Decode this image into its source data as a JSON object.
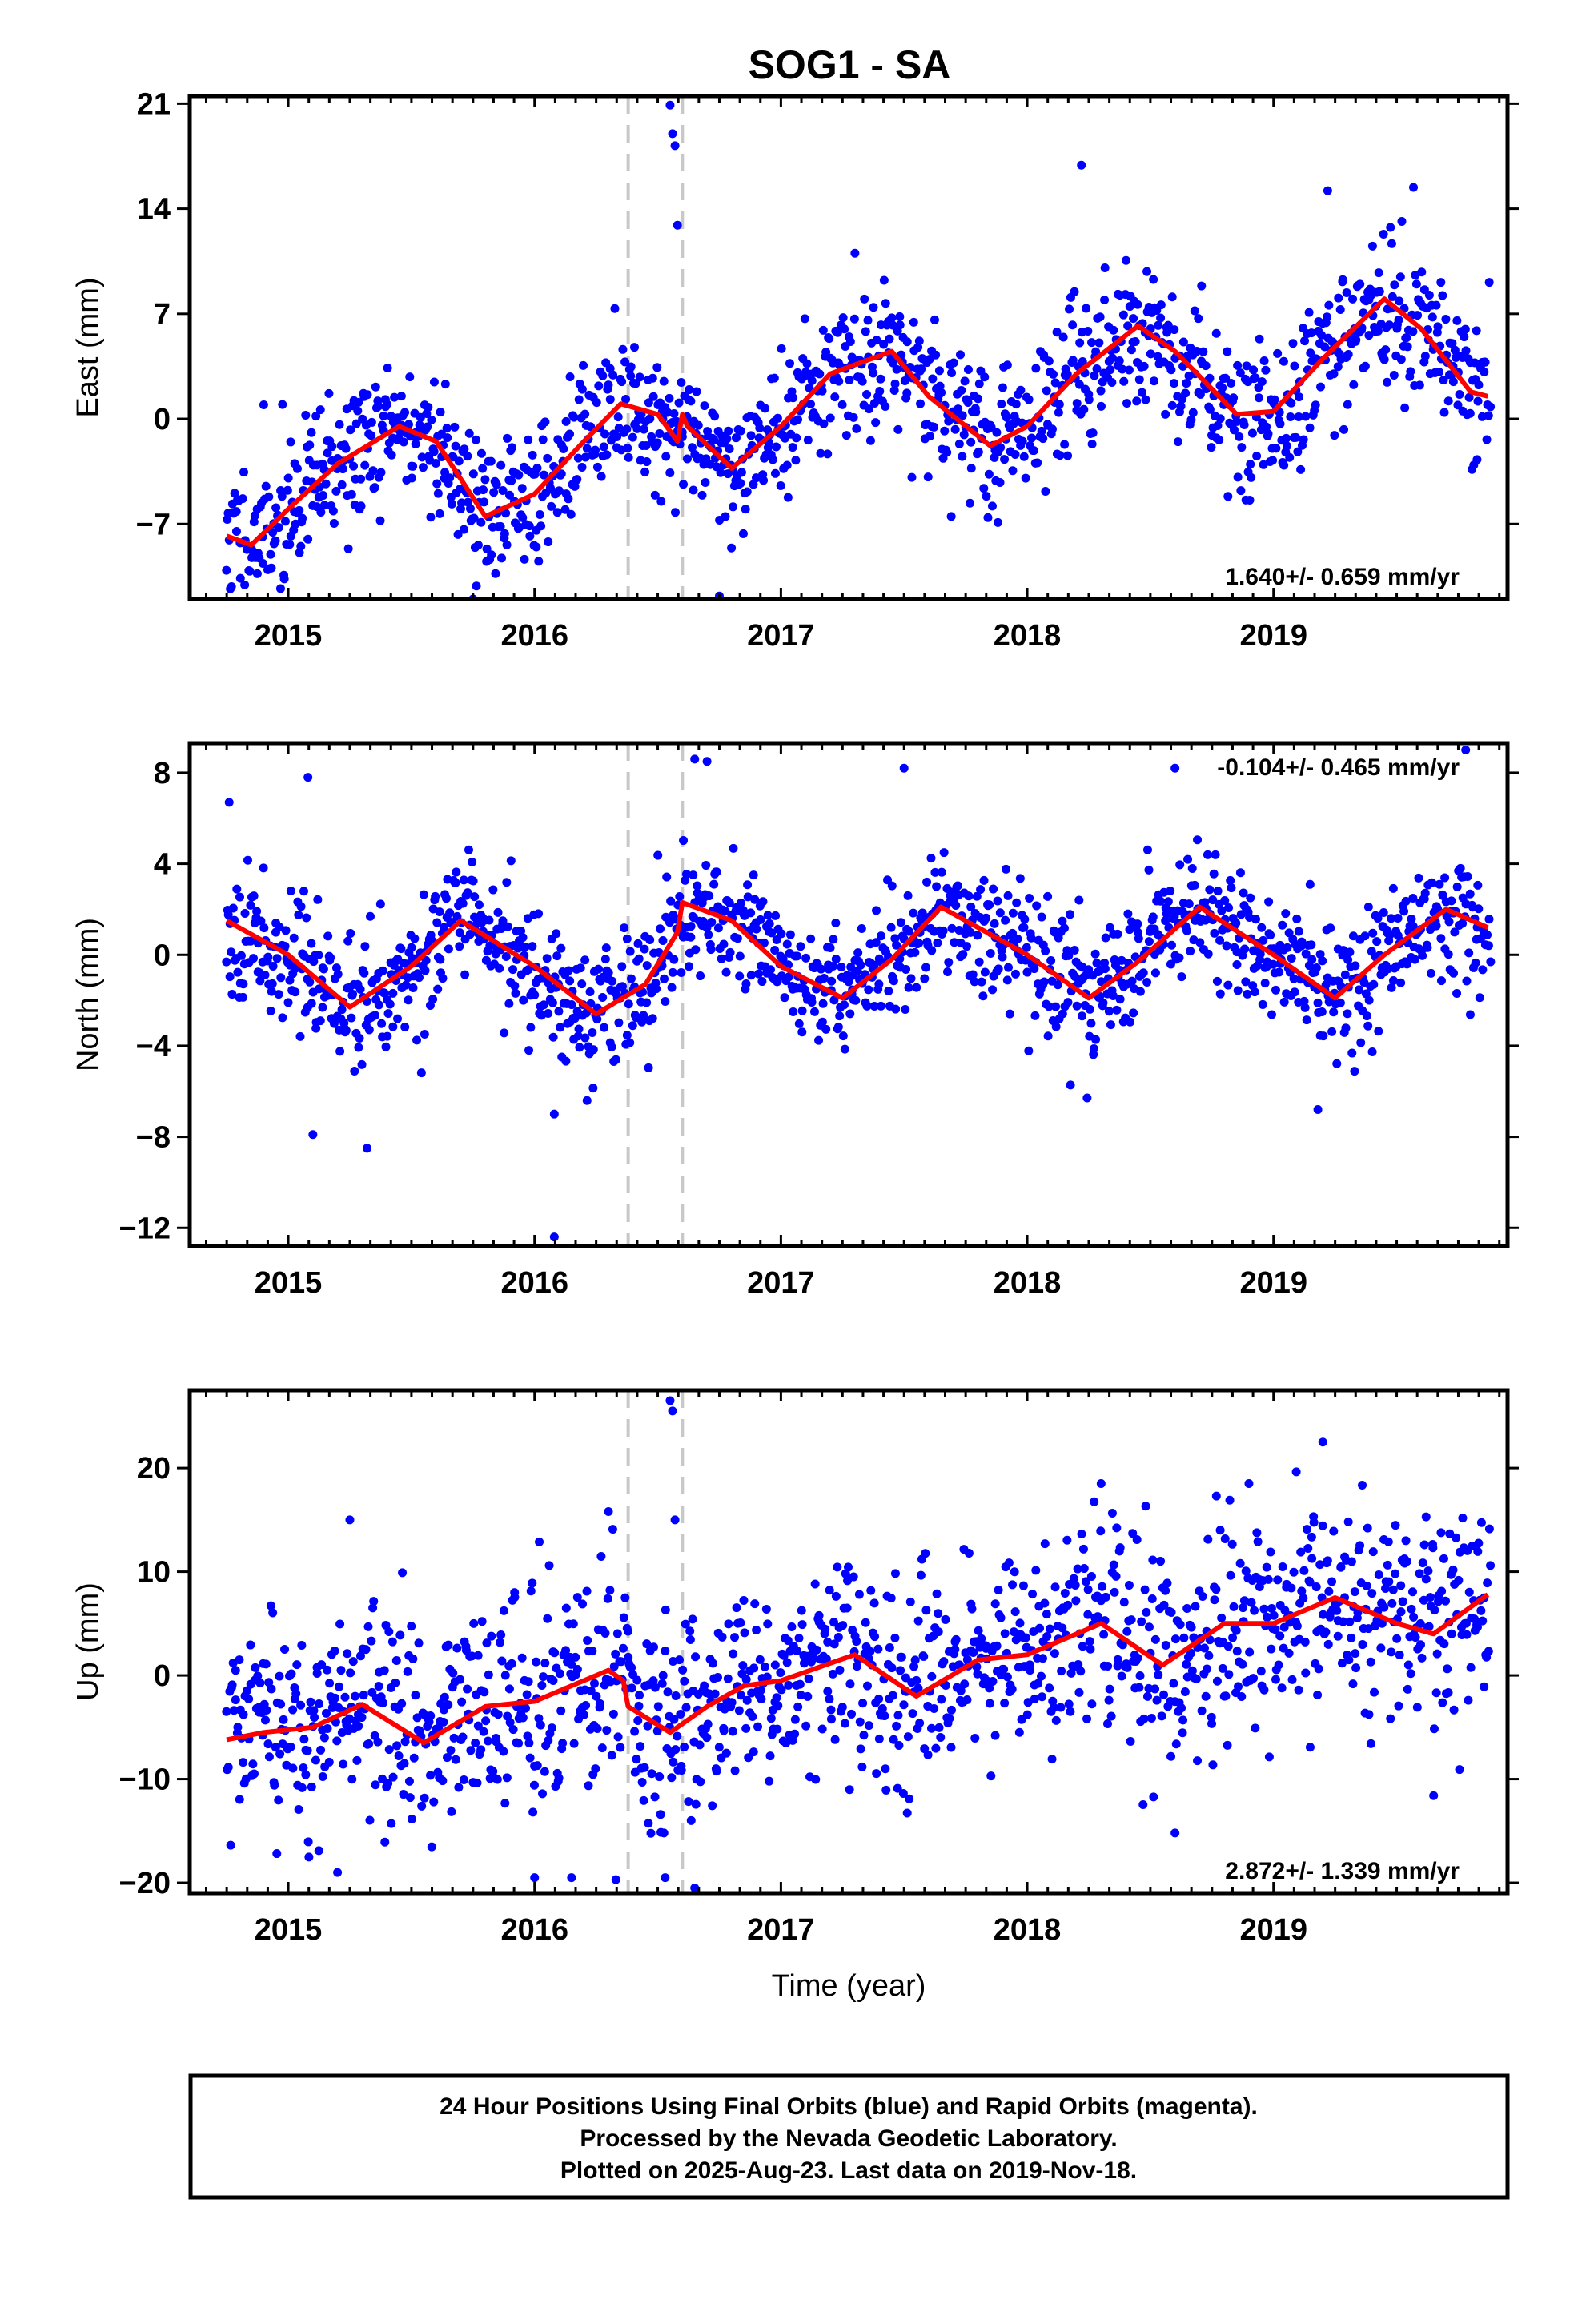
{
  "title": "SOG1 - SA",
  "colors": {
    "points": "#0000ff",
    "fit": "#ff0000",
    "steps": "#c8c8c8",
    "frame": "#000000"
  },
  "footer": {
    "line1": "24 Hour Positions Using Final Orbits (blue) and Rapid Orbits (magenta).",
    "line2": "Processed by the Nevada Geodetic Laboratory.",
    "line3": "Plotted on 2025-Aug-23. Last data on 2019-Nov-18."
  },
  "chart_data": [
    {
      "type": "scatter",
      "panel": "east",
      "ylabel": "East (mm)",
      "xlabel": "",
      "xlim": [
        2014.6,
        2019.95
      ],
      "ylim": [
        -12,
        21.5
      ],
      "x_ticks": [
        2015,
        2016,
        2017,
        2018,
        2019
      ],
      "y_ticks": [
        -7,
        0,
        7,
        14,
        21
      ],
      "y_tick_labels": [
        "−7",
        "0",
        "7",
        "14",
        "21"
      ],
      "rate_label": "1.640+/- 0.659 mm/yr",
      "rate_label_position": "bottom-right",
      "steps": [
        2016.38,
        2016.6
      ],
      "fit": {
        "name": "fit",
        "x": [
          2014.75,
          2014.85,
          2015.0,
          2015.2,
          2015.45,
          2015.6,
          2015.8,
          2016.0,
          2016.2,
          2016.35,
          2016.5,
          2016.58,
          2016.6,
          2016.62,
          2016.8,
          2017.0,
          2017.2,
          2017.45,
          2017.6,
          2017.85,
          2018.0,
          2018.2,
          2018.45,
          2018.6,
          2018.85,
          2019.0,
          2019.2,
          2019.45,
          2019.6,
          2019.8,
          2019.87
        ],
        "y": [
          -7.8,
          -8.4,
          -6.0,
          -3.0,
          -0.5,
          -1.5,
          -6.5,
          -5.0,
          -1.5,
          1.0,
          0.3,
          -1.5,
          0.3,
          -0.5,
          -3.3,
          -0.5,
          3.0,
          4.5,
          1.5,
          -1.8,
          -0.5,
          3.0,
          6.2,
          4.5,
          0.3,
          0.5,
          4.0,
          8.0,
          6.0,
          1.8,
          1.5
        ]
      },
      "points": {
        "name": "daily",
        "seed": 11,
        "x_start": 2014.75,
        "x_end": 2019.88,
        "count": 1350,
        "noise": 2.4,
        "outliers": [
          [
            2016.55,
            20.9
          ],
          [
            2016.56,
            19.0
          ],
          [
            2016.57,
            18.2
          ],
          [
            2016.58,
            12.9
          ],
          [
            2018.22,
            16.9
          ],
          [
            2019.22,
            15.2
          ],
          [
            2016.75,
            -11.8
          ],
          [
            2015.75,
            -12.0
          ]
        ]
      }
    },
    {
      "type": "scatter",
      "panel": "north",
      "ylabel": "North (mm)",
      "xlabel": "",
      "xlim": [
        2014.6,
        2019.95
      ],
      "ylim": [
        -12.8,
        9.3
      ],
      "x_ticks": [
        2015,
        2016,
        2017,
        2018,
        2019
      ],
      "y_ticks": [
        -12,
        -8,
        -4,
        0,
        4,
        8
      ],
      "y_tick_labels": [
        "−12",
        "−8",
        "−4",
        "0",
        "4",
        "8"
      ],
      "rate_label": "-0.104+/- 0.465 mm/yr",
      "rate_label_position": "top-right",
      "steps": [
        2016.38,
        2016.6
      ],
      "fit": {
        "name": "fit",
        "x": [
          2014.75,
          2015.0,
          2015.25,
          2015.5,
          2015.7,
          2016.0,
          2016.25,
          2016.45,
          2016.58,
          2016.6,
          2016.8,
          2017.0,
          2017.25,
          2017.45,
          2017.65,
          2018.0,
          2018.25,
          2018.45,
          2018.7,
          2019.0,
          2019.25,
          2019.45,
          2019.7,
          2019.87
        ],
        "y": [
          1.5,
          0.0,
          -2.3,
          -0.5,
          1.5,
          -0.5,
          -2.6,
          -1.3,
          1.0,
          2.3,
          1.5,
          -0.5,
          -1.9,
          -0.2,
          2.1,
          0.0,
          -1.9,
          -0.3,
          2.1,
          0.0,
          -1.9,
          0.0,
          2.0,
          1.2
        ]
      },
      "points": {
        "name": "daily",
        "seed": 23,
        "x_start": 2014.75,
        "x_end": 2019.88,
        "count": 1350,
        "noise": 1.4,
        "outliers": [
          [
            2016.65,
            8.6
          ],
          [
            2016.7,
            8.5
          ],
          [
            2017.5,
            8.2
          ],
          [
            2018.6,
            8.2
          ],
          [
            2019.78,
            9.0
          ],
          [
            2014.76,
            6.7
          ],
          [
            2015.08,
            7.8
          ],
          [
            2015.1,
            -7.9
          ],
          [
            2015.32,
            -8.5
          ],
          [
            2016.08,
            -7.0
          ],
          [
            2016.08,
            -12.4
          ],
          [
            2019.18,
            -6.8
          ]
        ]
      }
    },
    {
      "type": "scatter",
      "panel": "up",
      "ylabel": "Up (mm)",
      "xlabel": "Time (year)",
      "xlim": [
        2014.6,
        2019.95
      ],
      "ylim": [
        -21,
        27.5
      ],
      "x_ticks": [
        2015,
        2016,
        2017,
        2018,
        2019
      ],
      "y_ticks": [
        -20,
        -10,
        0,
        10,
        20
      ],
      "y_tick_labels": [
        "−20",
        "−10",
        "0",
        "10",
        "20"
      ],
      "rate_label": "2.872+/- 1.339 mm/yr",
      "rate_label_position": "bottom-right",
      "steps": [
        2016.38,
        2016.6
      ],
      "fit": {
        "name": "fit",
        "x": [
          2014.75,
          2014.9,
          2015.1,
          2015.3,
          2015.55,
          2015.8,
          2016.0,
          2016.1,
          2016.3,
          2016.36,
          2016.38,
          2016.55,
          2016.7,
          2016.85,
          2017.0,
          2017.3,
          2017.55,
          2017.8,
          2018.0,
          2018.3,
          2018.55,
          2018.8,
          2019.0,
          2019.25,
          2019.5,
          2019.65,
          2019.87
        ],
        "y": [
          -6.2,
          -5.5,
          -5.0,
          -2.8,
          -6.5,
          -3.0,
          -2.5,
          -1.5,
          0.5,
          -0.5,
          -3.0,
          -5.5,
          -3.0,
          -1.0,
          -0.5,
          2.0,
          -2.0,
          1.5,
          2.0,
          5.0,
          1.0,
          5.0,
          5.0,
          7.5,
          5.0,
          4.0,
          7.8
        ]
      },
      "points": {
        "name": "daily",
        "seed": 37,
        "x_start": 2014.75,
        "x_end": 2019.88,
        "count": 1350,
        "noise": 5.0,
        "outliers": [
          [
            2016.55,
            26.5
          ],
          [
            2016.56,
            25.5
          ],
          [
            2016.57,
            15.0
          ],
          [
            2019.2,
            22.5
          ],
          [
            2018.3,
            18.5
          ],
          [
            2018.9,
            18.5
          ],
          [
            2016.3,
            15.8
          ],
          [
            2015.25,
            15.0
          ],
          [
            2015.2,
            -19.0
          ],
          [
            2016.0,
            -19.5
          ],
          [
            2016.15,
            -19.5
          ],
          [
            2016.33,
            -19.7
          ],
          [
            2016.53,
            -19.5
          ],
          [
            2016.65,
            -20.5
          ],
          [
            2018.6,
            -15.2
          ],
          [
            2019.65,
            -11.6
          ]
        ]
      }
    }
  ]
}
